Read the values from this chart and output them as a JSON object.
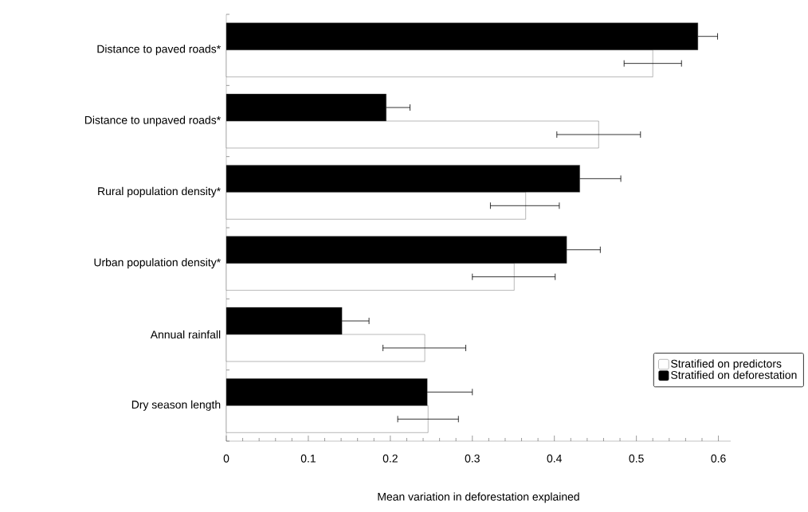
{
  "chart_data": {
    "type": "bar",
    "orientation": "horizontal",
    "xlabel": "Mean variation in deforestation explained",
    "categories": [
      "Distance to paved roads*",
      "Distance to unpaved roads*",
      "Rural population density*",
      "Urban population density*",
      "Annual rainfall",
      "Dry season length"
    ],
    "series": [
      {
        "name": "Stratified on predictors",
        "color": "#ffffff",
        "values": [
          0.52,
          0.454,
          0.365,
          0.351,
          0.242,
          0.246
        ],
        "errors": [
          [
            0.485,
            0.555
          ],
          [
            0.403,
            0.505
          ],
          [
            0.322,
            0.406
          ],
          [
            0.3,
            0.401
          ],
          [
            0.191,
            0.292
          ],
          [
            0.209,
            0.283
          ]
        ]
      },
      {
        "name": "Stratified on deforestation",
        "color": "#000000",
        "values": [
          0.575,
          0.195,
          0.431,
          0.415,
          0.141,
          0.245
        ],
        "errors": [
          [
            0.575,
            0.599
          ],
          [
            0.195,
            0.224
          ],
          [
            0.431,
            0.481
          ],
          [
            0.415,
            0.456
          ],
          [
            0.141,
            0.174
          ],
          [
            0.245,
            0.3
          ]
        ]
      }
    ],
    "xlim": [
      0,
      0.615
    ],
    "xticks": [
      0,
      0.1,
      0.2,
      0.3,
      0.4,
      0.5,
      0.6
    ],
    "grid": false,
    "legend": "bottom right"
  }
}
